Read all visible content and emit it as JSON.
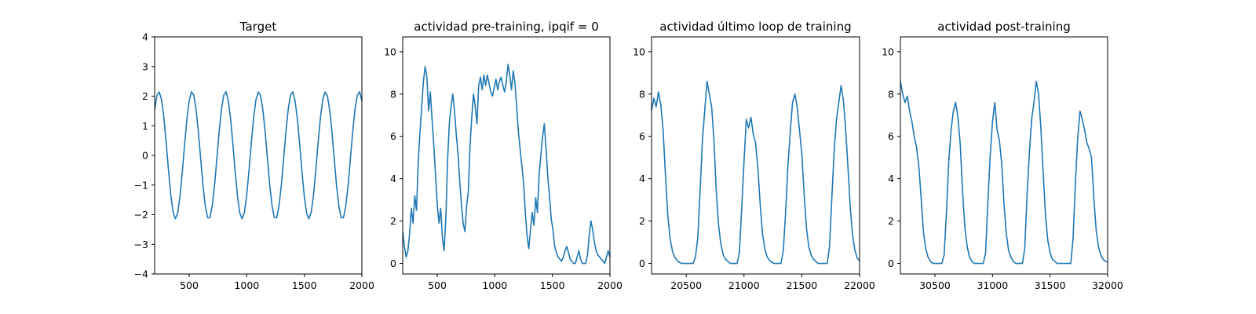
{
  "chart_data": [
    {
      "type": "line",
      "title": "Target",
      "xlabel": "",
      "ylabel": "",
      "xlim": [
        200,
        2000
      ],
      "ylim": [
        -4,
        4
      ],
      "xticks": [
        500,
        1000,
        1500,
        2000
      ],
      "yticks": [
        -4,
        -3,
        -2,
        -1,
        0,
        1,
        2,
        3,
        4
      ],
      "grid": false,
      "series": [
        {
          "color": "#1f77b4",
          "x": [
            200,
            220,
            240,
            260,
            280,
            300,
            320,
            340,
            360,
            380,
            400,
            420,
            440,
            460,
            480,
            500,
            520,
            540,
            560,
            580,
            600,
            620,
            640,
            660,
            680,
            700,
            720,
            740,
            760,
            780,
            800,
            820,
            840,
            860,
            880,
            900,
            920,
            940,
            960,
            980,
            1000,
            1020,
            1040,
            1060,
            1080,
            1100,
            1120,
            1140,
            1160,
            1180,
            1200,
            1220,
            1240,
            1260,
            1280,
            1300,
            1320,
            1340,
            1360,
            1380,
            1400,
            1420,
            1440,
            1460,
            1480,
            1500,
            1520,
            1540,
            1560,
            1580,
            1600,
            1620,
            1640,
            1660,
            1680,
            1700,
            1720,
            1740,
            1760,
            1780,
            1800,
            1820,
            1840,
            1860,
            1880,
            1900,
            1920,
            1940,
            1960,
            1980,
            2000
          ],
          "y": [
            1.54,
            2.02,
            2.14,
            1.88,
            1.28,
            0.44,
            -0.49,
            -1.33,
            -1.91,
            -2.14,
            -1.95,
            -1.39,
            -0.57,
            0.36,
            1.22,
            1.84,
            2.15,
            2.03,
            1.55,
            0.79,
            -0.12,
            -1.02,
            -1.71,
            -2.1,
            -2.1,
            -1.71,
            -1.02,
            -0.12,
            0.79,
            1.55,
            2.03,
            2.15,
            1.84,
            1.22,
            0.36,
            -0.57,
            -1.39,
            -1.95,
            -2.14,
            -1.91,
            -1.33,
            -0.49,
            0.44,
            1.28,
            1.88,
            2.14,
            2.02,
            1.54,
            0.79,
            -0.12,
            -1.02,
            -1.71,
            -2.1,
            -2.1,
            -1.71,
            -1.02,
            -0.12,
            0.79,
            1.55,
            2.03,
            2.15,
            1.84,
            1.22,
            0.36,
            -0.57,
            -1.39,
            -1.95,
            -2.14,
            -1.91,
            -1.33,
            -0.49,
            0.44,
            1.28,
            1.88,
            2.14,
            2.02,
            1.54,
            0.79,
            -0.12,
            -1.02,
            -1.71,
            -2.1,
            -2.1,
            -1.71,
            -1.02,
            -0.12,
            0.79,
            1.55,
            2.03,
            2.15,
            1.84
          ]
        }
      ]
    },
    {
      "type": "line",
      "title": "actividad pre-training, ipqif = 0",
      "xlabel": "",
      "ylabel": "",
      "xlim": [
        200,
        2000
      ],
      "ylim": [
        -0.5,
        10.7
      ],
      "xticks": [
        500,
        1000,
        1500,
        2000
      ],
      "yticks": [
        0,
        2,
        4,
        6,
        8,
        10
      ],
      "grid": false,
      "series": [
        {
          "color": "#1f77b4",
          "x": [
            200,
            215,
            230,
            245,
            260,
            275,
            290,
            305,
            320,
            335,
            350,
            365,
            380,
            395,
            410,
            425,
            440,
            455,
            470,
            485,
            500,
            515,
            530,
            545,
            560,
            575,
            590,
            605,
            620,
            635,
            650,
            665,
            680,
            695,
            710,
            725,
            740,
            755,
            770,
            785,
            800,
            815,
            830,
            845,
            860,
            875,
            890,
            905,
            920,
            935,
            950,
            965,
            980,
            995,
            1010,
            1025,
            1040,
            1055,
            1070,
            1085,
            1100,
            1115,
            1130,
            1145,
            1160,
            1175,
            1190,
            1205,
            1220,
            1235,
            1250,
            1265,
            1280,
            1295,
            1310,
            1325,
            1340,
            1355,
            1370,
            1385,
            1400,
            1415,
            1430,
            1445,
            1460,
            1475,
            1490,
            1505,
            1520,
            1535,
            1550,
            1565,
            1580,
            1595,
            1610,
            1625,
            1640,
            1655,
            1670,
            1685,
            1700,
            1715,
            1730,
            1745,
            1760,
            1775,
            1790,
            1805,
            1820,
            1835,
            1850,
            1865,
            1880,
            1895,
            1910,
            1925,
            1940,
            1955,
            1970,
            1985,
            2000
          ],
          "y": [
            1.5,
            0.8,
            0.3,
            0.6,
            1.4,
            2.6,
            1.9,
            3.2,
            2.5,
            4.8,
            6.2,
            7.4,
            8.6,
            9.3,
            8.8,
            7.2,
            8.1,
            6.8,
            5.6,
            4.2,
            2.8,
            1.9,
            2.6,
            1.2,
            0.6,
            2.2,
            4.9,
            6.6,
            7.4,
            8.0,
            7.2,
            6.1,
            5.2,
            3.9,
            2.8,
            1.9,
            1.5,
            2.7,
            3.4,
            5.6,
            6.9,
            8.0,
            7.4,
            6.6,
            8.4,
            8.8,
            8.2,
            8.9,
            8.4,
            8.9,
            8.5,
            8.1,
            7.9,
            8.3,
            8.7,
            8.2,
            8.6,
            8.8,
            8.4,
            8.1,
            8.6,
            9.4,
            8.9,
            8.2,
            9.1,
            8.5,
            7.4,
            6.2,
            5.4,
            4.6,
            3.8,
            2.4,
            1.3,
            0.7,
            1.6,
            2.4,
            1.8,
            3.1,
            2.4,
            4.2,
            5.1,
            6.0,
            6.6,
            5.4,
            4.1,
            3.2,
            2.1,
            1.6,
            0.8,
            0.5,
            0.3,
            0.2,
            0.1,
            0.3,
            0.6,
            0.8,
            0.5,
            0.2,
            0.1,
            0.0,
            0.0,
            0.3,
            0.6,
            0.2,
            0.0,
            0.0,
            0.0,
            0.4,
            1.3,
            2.0,
            1.6,
            1.0,
            0.6,
            0.4,
            0.3,
            0.2,
            0.1,
            0.0,
            0.3,
            0.6,
            0.3
          ]
        }
      ]
    },
    {
      "type": "line",
      "title": "actividad último loop de training",
      "xlabel": "",
      "ylabel": "",
      "xlim": [
        20200,
        22000
      ],
      "ylim": [
        -0.5,
        10.7
      ],
      "xticks": [
        20500,
        21000,
        21500,
        22000
      ],
      "yticks": [
        0,
        2,
        4,
        6,
        8,
        10
      ],
      "grid": false,
      "series": [
        {
          "color": "#1f77b4",
          "x": [
            20200,
            20220,
            20240,
            20260,
            20280,
            20300,
            20320,
            20340,
            20360,
            20380,
            20400,
            20420,
            20440,
            20460,
            20480,
            20500,
            20520,
            20540,
            20560,
            20580,
            20600,
            20620,
            20640,
            20660,
            20680,
            20700,
            20720,
            20740,
            20760,
            20780,
            20800,
            20820,
            20840,
            20860,
            20880,
            20900,
            20920,
            20940,
            20960,
            20980,
            21000,
            21020,
            21040,
            21060,
            21080,
            21100,
            21120,
            21140,
            21160,
            21180,
            21200,
            21220,
            21240,
            21260,
            21280,
            21300,
            21320,
            21340,
            21360,
            21380,
            21400,
            21420,
            21440,
            21460,
            21480,
            21500,
            21520,
            21540,
            21560,
            21580,
            21600,
            21620,
            21640,
            21660,
            21680,
            21700,
            21720,
            21740,
            21760,
            21780,
            21800,
            21820,
            21840,
            21860,
            21880,
            21900,
            21920,
            21940,
            21960,
            21980,
            22000
          ],
          "y": [
            7.2,
            7.8,
            7.4,
            8.1,
            7.5,
            6.3,
            4.2,
            2.3,
            1.2,
            0.6,
            0.3,
            0.15,
            0.05,
            0.0,
            0.0,
            0.0,
            0.0,
            0.0,
            0.0,
            0.3,
            1.2,
            3.4,
            5.8,
            7.2,
            8.6,
            8.0,
            7.4,
            5.8,
            3.4,
            1.8,
            0.9,
            0.4,
            0.2,
            0.1,
            0.0,
            0.0,
            0.0,
            0.0,
            0.5,
            2.6,
            4.8,
            6.8,
            6.4,
            6.9,
            6.1,
            5.7,
            4.5,
            2.8,
            1.4,
            0.7,
            0.3,
            0.15,
            0.05,
            0.0,
            0.0,
            0.0,
            0.0,
            0.6,
            2.4,
            4.6,
            6.2,
            7.6,
            8.0,
            7.4,
            6.3,
            5.2,
            3.3,
            1.7,
            0.8,
            0.4,
            0.2,
            0.1,
            0.0,
            0.0,
            0.0,
            0.0,
            0.0,
            0.8,
            3.1,
            5.3,
            6.8,
            7.6,
            8.4,
            7.7,
            6.3,
            4.5,
            2.6,
            1.3,
            0.6,
            0.25,
            0.1
          ]
        }
      ]
    },
    {
      "type": "line",
      "title": "actividad post-training",
      "xlabel": "",
      "ylabel": "",
      "xlim": [
        30200,
        32000
      ],
      "ylim": [
        -0.5,
        10.7
      ],
      "xticks": [
        30500,
        31000,
        31500,
        32000
      ],
      "yticks": [
        0,
        2,
        4,
        6,
        8,
        10
      ],
      "grid": false,
      "series": [
        {
          "color": "#1f77b4",
          "x": [
            30200,
            30220,
            30240,
            30260,
            30280,
            30300,
            30320,
            30340,
            30360,
            30380,
            30400,
            30420,
            30440,
            30460,
            30480,
            30500,
            30520,
            30540,
            30560,
            30580,
            30600,
            30620,
            30640,
            30660,
            30680,
            30700,
            30720,
            30740,
            30760,
            30780,
            30800,
            30820,
            30840,
            30860,
            30880,
            30900,
            30920,
            30940,
            30960,
            30980,
            31000,
            31020,
            31040,
            31060,
            31080,
            31100,
            31120,
            31140,
            31160,
            31180,
            31200,
            31220,
            31240,
            31260,
            31280,
            31300,
            31320,
            31340,
            31360,
            31380,
            31400,
            31420,
            31440,
            31460,
            31480,
            31500,
            31520,
            31540,
            31560,
            31580,
            31600,
            31620,
            31640,
            31660,
            31680,
            31700,
            31720,
            31740,
            31760,
            31780,
            31800,
            31820,
            31840,
            31860,
            31880,
            31900,
            31920,
            31940,
            31960,
            31980,
            32000
          ],
          "y": [
            8.6,
            8.0,
            7.6,
            7.9,
            7.2,
            6.7,
            6.0,
            5.5,
            4.6,
            3.1,
            1.5,
            0.7,
            0.3,
            0.1,
            0.0,
            0.0,
            0.0,
            0.0,
            0.0,
            0.4,
            2.4,
            4.8,
            6.3,
            7.2,
            7.6,
            6.9,
            5.6,
            3.4,
            1.7,
            0.8,
            0.3,
            0.1,
            0.0,
            0.0,
            0.0,
            0.0,
            0.0,
            0.5,
            2.9,
            5.1,
            6.7,
            7.6,
            6.3,
            5.8,
            4.7,
            2.8,
            1.4,
            0.6,
            0.3,
            0.1,
            0.0,
            0.0,
            0.0,
            0.0,
            0.7,
            3.2,
            5.2,
            6.8,
            7.6,
            8.6,
            8.0,
            6.4,
            4.3,
            2.3,
            1.1,
            0.5,
            0.2,
            0.1,
            0.0,
            0.0,
            0.0,
            0.0,
            0.0,
            0.0,
            0.0,
            1.2,
            3.8,
            5.9,
            7.2,
            6.8,
            6.3,
            5.7,
            5.4,
            5.0,
            3.1,
            1.6,
            0.8,
            0.4,
            0.2,
            0.1,
            0.05
          ]
        }
      ]
    }
  ]
}
